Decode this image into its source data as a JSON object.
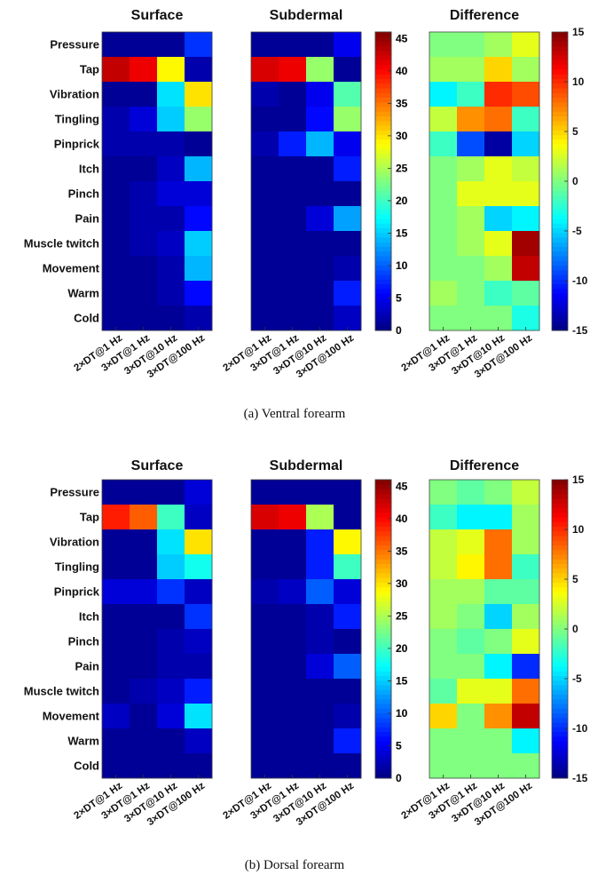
{
  "chart_data": [
    {
      "type": "heatmap",
      "caption": "(a) Ventral forearm",
      "rows": [
        "Pressure",
        "Tap",
        "Vibration",
        "Tingling",
        "Pinprick",
        "Itch",
        "Pinch",
        "Pain",
        "Muscle twitch",
        "Movement",
        "Warm",
        "Cold"
      ],
      "columns": [
        "2×DT@1 Hz",
        "3×DT@1 Hz",
        "3×DT@10 Hz",
        "3×DT@100 Hz"
      ],
      "panels": [
        {
          "title": "Surface",
          "colormap": "jet",
          "clim": [
            0,
            46
          ],
          "colorbar_ticks": [
            0,
            5,
            10,
            15,
            20,
            25,
            30,
            35,
            40,
            45
          ],
          "values": [
            [
              1,
              1,
              1,
              8
            ],
            [
              43,
              41,
              29,
              2
            ],
            [
              1,
              1,
              16,
              30
            ],
            [
              2,
              4,
              15,
              24
            ],
            [
              2,
              2,
              2,
              1
            ],
            [
              1,
              1,
              3,
              14
            ],
            [
              1,
              2,
              4,
              4
            ],
            [
              1,
              2,
              2,
              6
            ],
            [
              1,
              2,
              3,
              15
            ],
            [
              1,
              1,
              2,
              14
            ],
            [
              1,
              1,
              2,
              6
            ],
            [
              1,
              1,
              1,
              2
            ]
          ]
        },
        {
          "title": "Subdermal",
          "colormap": "jet",
          "clim": [
            0,
            46
          ],
          "colorbar_ticks": [
            0,
            5,
            10,
            15,
            20,
            25,
            30,
            35,
            40,
            45
          ],
          "values": [
            [
              1,
              1,
              1,
              5
            ],
            [
              42,
              41,
              24,
              1
            ],
            [
              2,
              1,
              5,
              21
            ],
            [
              1,
              1,
              6,
              24
            ],
            [
              2,
              7,
              14,
              5
            ],
            [
              1,
              1,
              1,
              7
            ],
            [
              1,
              1,
              1,
              1
            ],
            [
              1,
              1,
              4,
              13
            ],
            [
              1,
              1,
              1,
              1
            ],
            [
              1,
              1,
              1,
              2
            ],
            [
              1,
              1,
              1,
              7
            ],
            [
              1,
              1,
              1,
              3
            ]
          ]
        },
        {
          "title": "Difference",
          "colormap": "jet",
          "clim": [
            -15,
            15
          ],
          "colorbar_ticks": [
            -15,
            -10,
            -5,
            0,
            5,
            10,
            15
          ],
          "values": [
            [
              0,
              0,
              1,
              3
            ],
            [
              1,
              1,
              5,
              1
            ],
            [
              -4,
              -2,
              10,
              9
            ],
            [
              2,
              7,
              8,
              -2
            ],
            [
              -2,
              -9,
              -14,
              -5
            ],
            [
              0,
              1,
              3,
              2
            ],
            [
              0,
              3,
              3,
              3
            ],
            [
              0,
              1,
              -5,
              -4
            ],
            [
              0,
              1,
              3,
              14
            ],
            [
              0,
              0,
              1,
              13
            ],
            [
              1,
              0,
              -2,
              -1
            ],
            [
              0,
              0,
              0,
              -3
            ]
          ]
        }
      ]
    },
    {
      "type": "heatmap",
      "caption": "(b) Dorsal forearm",
      "rows": [
        "Pressure",
        "Tap",
        "Vibration",
        "Tingling",
        "Pinprick",
        "Itch",
        "Pinch",
        "Pain",
        "Muscle twitch",
        "Movement",
        "Warm",
        "Cold"
      ],
      "columns": [
        "2×DT@1 Hz",
        "3×DT@1 Hz",
        "3×DT@10 Hz",
        "3×DT@100 Hz"
      ],
      "panels": [
        {
          "title": "Surface",
          "colormap": "jet",
          "clim": [
            0,
            46
          ],
          "colorbar_ticks": [
            0,
            5,
            10,
            15,
            20,
            25,
            30,
            35,
            40,
            45
          ],
          "values": [
            [
              1,
              1,
              1,
              4
            ],
            [
              39,
              36,
              20,
              3
            ],
            [
              1,
              1,
              16,
              30
            ],
            [
              1,
              1,
              15,
              18
            ],
            [
              4,
              4,
              8,
              3
            ],
            [
              1,
              1,
              1,
              8
            ],
            [
              1,
              1,
              2,
              3
            ],
            [
              1,
              1,
              2,
              2
            ],
            [
              1,
              2,
              3,
              7
            ],
            [
              3,
              1,
              4,
              16
            ],
            [
              1,
              1,
              1,
              3
            ],
            [
              1,
              1,
              1,
              1
            ]
          ]
        },
        {
          "title": "Subdermal",
          "colormap": "jet",
          "clim": [
            0,
            46
          ],
          "colorbar_ticks": [
            0,
            5,
            10,
            15,
            20,
            25,
            30,
            35,
            40,
            45
          ],
          "values": [
            [
              1,
              1,
              1,
              1
            ],
            [
              42,
              41,
              25,
              1
            ],
            [
              1,
              1,
              7,
              29
            ],
            [
              1,
              1,
              7,
              20
            ],
            [
              2,
              3,
              10,
              4
            ],
            [
              1,
              1,
              2,
              7
            ],
            [
              1,
              1,
              2,
              1
            ],
            [
              1,
              1,
              4,
              10
            ],
            [
              1,
              1,
              1,
              1
            ],
            [
              1,
              1,
              1,
              2
            ],
            [
              1,
              1,
              1,
              7
            ],
            [
              1,
              1,
              1,
              1
            ]
          ]
        },
        {
          "title": "Difference",
          "colormap": "jet",
          "clim": [
            -15,
            15
          ],
          "colorbar_ticks": [
            -15,
            -10,
            -5,
            0,
            5,
            10,
            15
          ],
          "values": [
            [
              0,
              -1,
              0,
              2
            ],
            [
              -2,
              -4,
              -4,
              1
            ],
            [
              2,
              3,
              8,
              1
            ],
            [
              2,
              4,
              8,
              -2
            ],
            [
              1,
              1,
              -1,
              -1
            ],
            [
              1,
              0,
              -5,
              1
            ],
            [
              0,
              -1,
              0,
              3
            ],
            [
              0,
              0,
              -4,
              -10
            ],
            [
              -1,
              3,
              3,
              8
            ],
            [
              5,
              0,
              7,
              13
            ],
            [
              0,
              0,
              0,
              -4
            ],
            [
              0,
              0,
              0,
              0
            ]
          ]
        }
      ]
    }
  ]
}
